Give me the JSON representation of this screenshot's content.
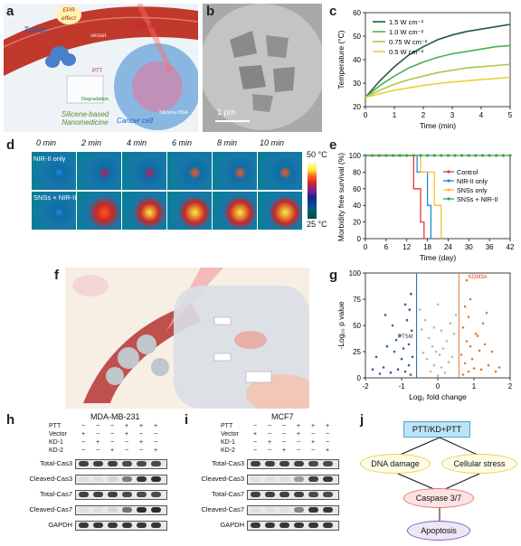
{
  "panels": {
    "a": {
      "label": "a",
      "epr": "EPR effect",
      "tumor": "Tumor",
      "vessel": "vessel",
      "nir": "NIR-II",
      "ptt": "PTT",
      "degradation": "Degradation",
      "silicene": "Silicene-based Nanomedicine",
      "cancer_cell": "Cancer cell",
      "bsa": "Silicene-BSA",
      "colors": {
        "vessel": "#c0392b",
        "cell": "#6fa8dc",
        "nucleus": "#c98bb0",
        "panel_bg": "#eef3f7"
      }
    },
    "b": {
      "label": "b",
      "scale": "1 µm"
    },
    "c": {
      "label": "c"
    },
    "d": {
      "label": "d",
      "times": [
        "0 min",
        "2 min",
        "4 min",
        "6 min",
        "8 min",
        "10 min"
      ],
      "rows": [
        "NIR-II only",
        "SNSs + NIR-II"
      ],
      "cbar_top": "50 °C",
      "cbar_bottom": "25 °C"
    },
    "e": {
      "label": "e"
    },
    "f": {
      "label": "f"
    },
    "g": {
      "label": "g"
    },
    "h": {
      "label": "h",
      "title": "MDA-MB-231",
      "conditions": [
        "PTT",
        "Vector",
        "KD-1",
        "KD-2"
      ],
      "signs": [
        [
          "−",
          "−",
          "−",
          "+",
          "+",
          "+"
        ],
        [
          "+",
          "−",
          "−",
          "+",
          "−",
          "−"
        ],
        [
          "−",
          "+",
          "−",
          "−",
          "+",
          "−"
        ],
        [
          "−",
          "−",
          "+",
          "−",
          "−",
          "+"
        ]
      ],
      "bands": [
        "Total-Cas3",
        "Cleaved-Cas3",
        "Total-Cas7",
        "Cleaved-Cas7",
        "GAPDH"
      ],
      "intensity": [
        [
          0.85,
          0.85,
          0.85,
          0.8,
          0.8,
          0.8
        ],
        [
          0.05,
          0.05,
          0.1,
          0.55,
          0.9,
          0.95
        ],
        [
          0.85,
          0.85,
          0.85,
          0.8,
          0.8,
          0.8
        ],
        [
          0.05,
          0.05,
          0.1,
          0.6,
          0.95,
          0.95
        ],
        [
          0.9,
          0.9,
          0.9,
          0.9,
          0.9,
          0.9
        ]
      ]
    },
    "i": {
      "label": "i",
      "title": "MCF7",
      "conditions": [
        "PTT",
        "Vector",
        "KD-1",
        "KD-2"
      ],
      "signs": [
        [
          "−",
          "−",
          "−",
          "+",
          "+",
          "+"
        ],
        [
          "+",
          "−",
          "−",
          "+",
          "−",
          "−"
        ],
        [
          "−",
          "+",
          "−",
          "−",
          "+",
          "−"
        ],
        [
          "−",
          "−",
          "+",
          "−",
          "−",
          "+"
        ]
      ],
      "bands": [
        "Total-Cas3",
        "Cleaved-Cas3",
        "Total-Cas7",
        "Cleaved-Cas7",
        "GAPDH"
      ],
      "intensity": [
        [
          0.85,
          0.85,
          0.85,
          0.85,
          0.8,
          0.8
        ],
        [
          0.05,
          0.05,
          0.05,
          0.4,
          0.85,
          0.9
        ],
        [
          0.85,
          0.85,
          0.85,
          0.85,
          0.8,
          0.8
        ],
        [
          0.05,
          0.05,
          0.05,
          0.5,
          0.9,
          0.9
        ],
        [
          0.9,
          0.9,
          0.9,
          0.9,
          0.9,
          0.9
        ]
      ]
    },
    "j": {
      "label": "j",
      "top": "PTT/KD+PTT",
      "left": "DNA damage",
      "right": "Cellular stress",
      "middle": "Caspase 3/7",
      "bottom": "Apoptosis"
    }
  },
  "chart_data": [
    {
      "type": "line",
      "panel": "c",
      "xlabel": "Time (min)",
      "ylabel": "Temperature (°C)",
      "xlim": [
        0,
        5
      ],
      "ylim": [
        20,
        60
      ],
      "xticks": [
        0,
        1,
        2,
        3,
        4,
        5
      ],
      "yticks": [
        20,
        30,
        40,
        50,
        60
      ],
      "legend": "top-left",
      "series": [
        {
          "name": "1.5 W cm⁻²",
          "color": "#1f5c3a",
          "x": [
            0,
            0.5,
            1,
            1.5,
            2,
            2.5,
            3,
            3.5,
            4,
            4.5,
            5
          ],
          "y": [
            24,
            31,
            37,
            42,
            45.5,
            48.5,
            50.5,
            52,
            53,
            54,
            55
          ]
        },
        {
          "name": "1.0 W cm⁻²",
          "color": "#4caf50",
          "x": [
            0,
            0.5,
            1,
            1.5,
            2,
            2.5,
            3,
            3.5,
            4,
            4.5,
            5
          ],
          "y": [
            24,
            29,
            33,
            36.5,
            39,
            41,
            42.5,
            43.5,
            44.5,
            45.5,
            46
          ]
        },
        {
          "name": "0.75 W cm⁻²",
          "color": "#a8c94a",
          "x": [
            0,
            0.5,
            1,
            1.5,
            2,
            2.5,
            3,
            3.5,
            4,
            4.5,
            5
          ],
          "y": [
            24,
            27,
            29.5,
            31.5,
            33,
            34.5,
            35.5,
            36.5,
            37,
            37.5,
            38
          ]
        },
        {
          "name": "0.5 W cm⁻²",
          "color": "#e8d23a",
          "x": [
            0,
            0.5,
            1,
            1.5,
            2,
            2.5,
            3,
            3.5,
            4,
            4.5,
            5
          ],
          "y": [
            24,
            25.5,
            27,
            28,
            29,
            29.8,
            30.5,
            31,
            31.5,
            32,
            32.5
          ]
        }
      ]
    },
    {
      "type": "line",
      "panel": "e",
      "xlabel": "Time (day)",
      "ylabel": "Morbidity free survival (%)",
      "xlim": [
        0,
        42
      ],
      "ylim": [
        0,
        100
      ],
      "xticks": [
        0,
        6,
        12,
        18,
        24,
        30,
        36,
        42
      ],
      "yticks": [
        0,
        20,
        40,
        60,
        80,
        100
      ],
      "legend": "right",
      "series": [
        {
          "name": "Control",
          "color": "#e53935",
          "step": [
            [
              0,
              100
            ],
            [
              14,
              100
            ],
            [
              14,
              60
            ],
            [
              16,
              60
            ],
            [
              16,
              20
            ],
            [
              17,
              20
            ],
            [
              17,
              0
            ]
          ]
        },
        {
          "name": "NIR-II only",
          "color": "#1e88e5",
          "step": [
            [
              0,
              100
            ],
            [
              15,
              100
            ],
            [
              15,
              80
            ],
            [
              18,
              80
            ],
            [
              18,
              40
            ],
            [
              19,
              40
            ],
            [
              19,
              0
            ]
          ]
        },
        {
          "name": "SNSs only",
          "color": "#fbc02d",
          "step": [
            [
              0,
              100
            ],
            [
              16,
              100
            ],
            [
              16,
              80
            ],
            [
              20,
              80
            ],
            [
              20,
              40
            ],
            [
              22,
              40
            ],
            [
              22,
              0
            ]
          ]
        },
        {
          "name": "SNSs + NIR-II",
          "color": "#43a047",
          "step": [
            [
              0,
              100
            ],
            [
              42,
              100
            ]
          ]
        }
      ]
    },
    {
      "type": "scatter",
      "panel": "g",
      "xlabel": "Log₂ fold change",
      "ylabel": "-Log₁₀ p value",
      "xlim": [
        -2,
        2
      ],
      "ylim": [
        0,
        100
      ],
      "xticks": [
        -2,
        -1,
        0,
        1,
        2
      ],
      "yticks": [
        0,
        25,
        50,
        75,
        100
      ],
      "thresholds": [
        -0.585,
        0.585
      ],
      "annotations": [
        {
          "text": "KDM3A",
          "x": 0.8,
          "y": 93
        },
        {
          "text": "PTSM",
          "x": -1.15,
          "y": 36
        }
      ],
      "series": [
        {
          "name": "down",
          "color": "#2f5f94",
          "points": [
            [
              -0.75,
              3
            ],
            [
              -0.9,
              6
            ],
            [
              -1.1,
              8
            ],
            [
              -0.8,
              12
            ],
            [
              -1.3,
              5
            ],
            [
              -0.7,
              20
            ],
            [
              -1.0,
              18
            ],
            [
              -1.5,
              10
            ],
            [
              -0.95,
              28
            ],
            [
              -1.2,
              25
            ],
            [
              -0.8,
              32
            ],
            [
              -1.6,
              4
            ],
            [
              -1.05,
              40
            ],
            [
              -0.72,
              45
            ],
            [
              -1.4,
              30
            ],
            [
              -0.85,
              55
            ],
            [
              -1.15,
              36
            ],
            [
              -1.8,
              8
            ],
            [
              -0.78,
              65
            ],
            [
              -1.25,
              50
            ],
            [
              -0.9,
              70
            ],
            [
              -1.7,
              20
            ],
            [
              -0.74,
              80
            ],
            [
              -1.45,
              60
            ]
          ]
        },
        {
          "name": "nonsig",
          "color": "#b8b8b8",
          "points": [
            [
              0,
              2
            ],
            [
              0.2,
              5
            ],
            [
              -0.2,
              6
            ],
            [
              0.1,
              10
            ],
            [
              -0.1,
              12
            ],
            [
              0.3,
              15
            ],
            [
              -0.3,
              18
            ],
            [
              0.05,
              22
            ],
            [
              -0.05,
              25
            ],
            [
              0.15,
              28
            ],
            [
              -0.15,
              30
            ],
            [
              0.25,
              35
            ],
            [
              -0.25,
              38
            ],
            [
              0.4,
              20
            ],
            [
              -0.4,
              24
            ],
            [
              0.45,
              42
            ],
            [
              -0.45,
              46
            ],
            [
              0.35,
              52
            ],
            [
              -0.35,
              55
            ],
            [
              0.5,
              60
            ],
            [
              -0.5,
              65
            ],
            [
              0.1,
              45
            ],
            [
              -0.1,
              48
            ],
            [
              0.0,
              70
            ]
          ]
        },
        {
          "name": "up",
          "color": "#e07b39",
          "points": [
            [
              0.7,
              3
            ],
            [
              0.85,
              6
            ],
            [
              1.0,
              9
            ],
            [
              0.75,
              14
            ],
            [
              1.2,
              8
            ],
            [
              0.65,
              22
            ],
            [
              0.95,
              18
            ],
            [
              1.4,
              12
            ],
            [
              0.9,
              30
            ],
            [
              1.15,
              26
            ],
            [
              0.8,
              35
            ],
            [
              1.6,
              6
            ],
            [
              1.05,
              42
            ],
            [
              0.7,
              48
            ],
            [
              1.3,
              32
            ],
            [
              0.85,
              58
            ],
            [
              1.1,
              40
            ],
            [
              1.7,
              10
            ],
            [
              0.75,
              68
            ],
            [
              1.25,
              52
            ],
            [
              0.9,
              75
            ],
            [
              1.5,
              25
            ],
            [
              0.8,
              93
            ],
            [
              1.35,
              62
            ]
          ]
        }
      ]
    }
  ]
}
